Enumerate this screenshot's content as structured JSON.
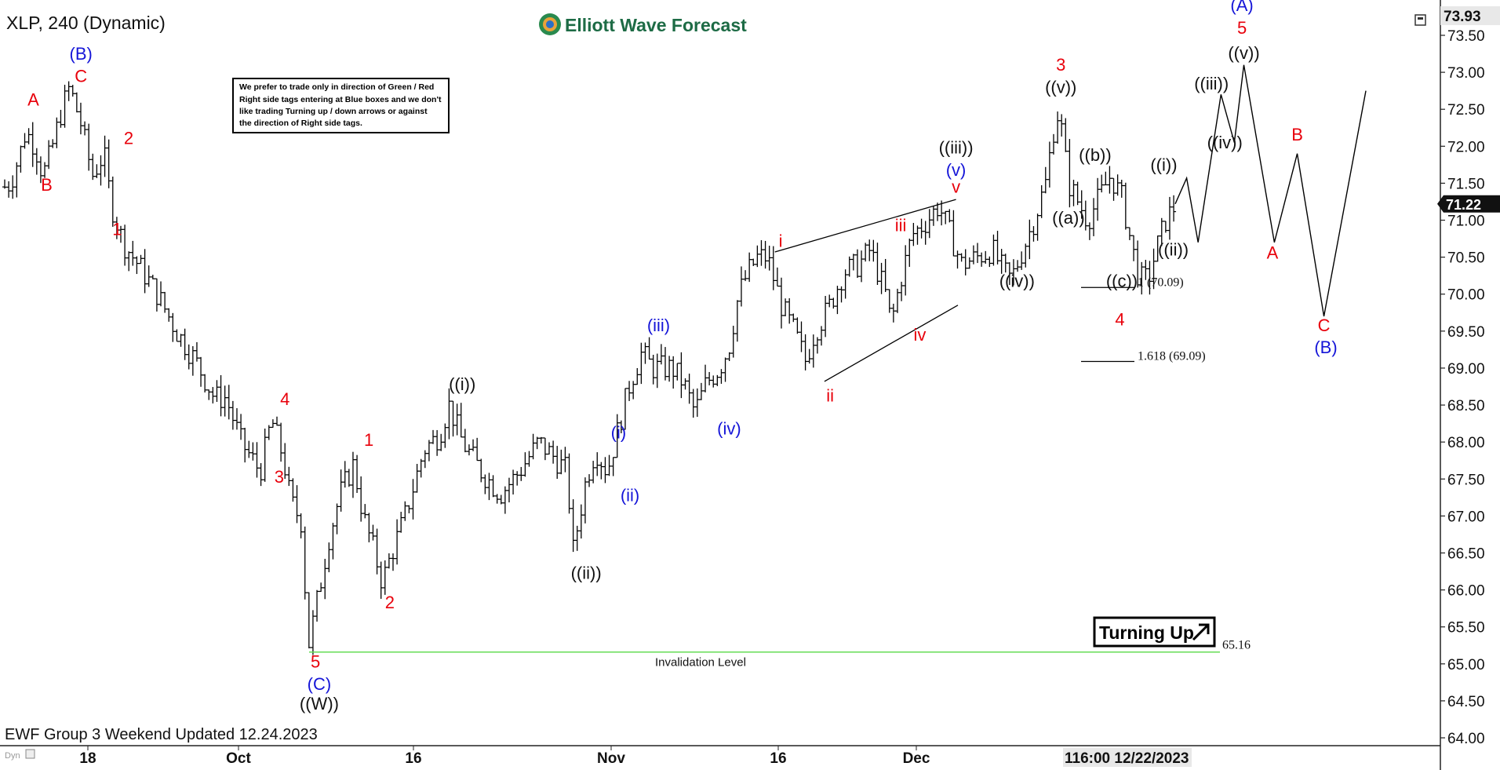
{
  "header": {
    "symbol_title": "XLP, 240 (Dynamic)",
    "brand": "Elliott Wave Forecast"
  },
  "note": {
    "lines": [
      "We prefer to trade only in direction of Green / Red",
      "Right side tags entering at Blue boxes and we don't",
      "like trading Turning up / down arrows or against",
      "the direction of Right side tags."
    ]
  },
  "footer": {
    "update_text": "EWF Group 3 Weekend Updated 12.24.2023",
    "corner_text": "Dyn"
  },
  "badge": {
    "label": "Turning Up",
    "icon": "arrow-up-right-icon"
  },
  "invalidation": {
    "label": "Invalidation Level",
    "value_text": "65.16",
    "value": 65.16,
    "color": "#66dd55"
  },
  "fib_levels": [
    {
      "label": "1 (70.09)",
      "value": 70.09
    },
    {
      "label": "1.618 (69.09)",
      "value": 69.09
    }
  ],
  "current_price": {
    "label": "71.22",
    "value": 71.22
  },
  "max_price_label": "73.93",
  "colors": {
    "red": "#e8000b",
    "blue": "#1515d8",
    "black": "#111111",
    "green_line": "#66dd55",
    "brand_green": "#1d6b45"
  },
  "chart_data": {
    "type": "ohlc",
    "title": "XLP, 240 (Dynamic)",
    "ylim": [
      64.0,
      73.93
    ],
    "y_ticks": [
      "73.50",
      "73.00",
      "72.50",
      "72.00",
      "71.50",
      "71.00",
      "70.50",
      "70.00",
      "69.50",
      "69.00",
      "68.50",
      "68.00",
      "67.50",
      "67.00",
      "66.50",
      "66.00",
      "65.50",
      "65.00",
      "64.50",
      "64.00"
    ],
    "x_ticks": [
      "18",
      "Oct",
      "16",
      "Nov",
      "16",
      "Dec"
    ],
    "x_end_label": "116:00 12/22/2023",
    "path_points": [
      [
        0,
        71.45
      ],
      [
        0.3,
        71.5
      ],
      [
        0.8,
        71.9
      ],
      [
        1.1,
        72.2
      ],
      [
        1.6,
        72.0
      ],
      [
        2.0,
        71.6
      ],
      [
        2.4,
        71.9
      ],
      [
        3.0,
        72.5
      ],
      [
        3.4,
        72.8
      ],
      [
        4.0,
        72.3
      ],
      [
        4.6,
        71.6
      ],
      [
        5.2,
        71.9
      ],
      [
        5.6,
        71.2
      ],
      [
        6.2,
        70.7
      ],
      [
        7.0,
        70.4
      ],
      [
        8.0,
        70.0
      ],
      [
        9.0,
        69.5
      ],
      [
        10.0,
        69.1
      ],
      [
        11.0,
        68.6
      ],
      [
        11.6,
        68.6
      ],
      [
        12.4,
        68.0
      ],
      [
        13.4,
        67.6
      ],
      [
        14.0,
        68.3
      ],
      [
        14.6,
        67.8
      ],
      [
        15.0,
        67.2
      ],
      [
        15.6,
        66.9
      ],
      [
        15.9,
        65.2
      ],
      [
        16.5,
        66.0
      ],
      [
        17.0,
        66.7
      ],
      [
        17.6,
        67.3
      ],
      [
        18.3,
        67.7
      ],
      [
        18.8,
        67.0
      ],
      [
        19.4,
        66.5
      ],
      [
        19.8,
        66.1
      ],
      [
        20.3,
        66.5
      ],
      [
        21.0,
        67.0
      ],
      [
        22.0,
        67.9
      ],
      [
        22.8,
        68.1
      ],
      [
        23.3,
        68.5
      ],
      [
        24.0,
        68.0
      ],
      [
        25.0,
        67.6
      ],
      [
        26.0,
        67.3
      ],
      [
        27.0,
        67.6
      ],
      [
        28.0,
        68.0
      ],
      [
        28.8,
        67.8
      ],
      [
        29.5,
        67.6
      ],
      [
        29.8,
        66.5
      ],
      [
        30.5,
        67.5
      ],
      [
        31.0,
        67.9
      ],
      [
        31.6,
        67.6
      ],
      [
        32.2,
        68.2
      ],
      [
        32.8,
        68.8
      ],
      [
        33.4,
        69.2
      ],
      [
        34.0,
        69.0
      ],
      [
        35.0,
        69.0
      ],
      [
        35.6,
        68.8
      ],
      [
        36.2,
        68.4
      ],
      [
        36.8,
        68.8
      ],
      [
        37.5,
        69.0
      ],
      [
        38.0,
        69.3
      ],
      [
        38.5,
        70.0
      ],
      [
        39.0,
        70.3
      ],
      [
        39.5,
        70.5
      ],
      [
        40.0,
        70.5
      ],
      [
        40.8,
        69.8
      ],
      [
        41.4,
        69.5
      ],
      [
        42.0,
        69.1
      ],
      [
        42.5,
        69.5
      ],
      [
        43.2,
        69.8
      ],
      [
        44.0,
        70.3
      ],
      [
        44.8,
        70.4
      ],
      [
        45.4,
        70.6
      ],
      [
        45.8,
        70.3
      ],
      [
        46.2,
        70.0
      ],
      [
        46.5,
        69.6
      ],
      [
        47.0,
        70.2
      ],
      [
        47.6,
        70.8
      ],
      [
        48.4,
        71.0
      ],
      [
        49.0,
        71.2
      ],
      [
        49.6,
        70.8
      ],
      [
        50.2,
        70.4
      ],
      [
        51.0,
        70.5
      ],
      [
        51.8,
        70.6
      ],
      [
        52.4,
        70.3
      ],
      [
        52.8,
        70.2
      ],
      [
        53.4,
        70.6
      ],
      [
        54.0,
        71.0
      ],
      [
        54.6,
        71.5
      ],
      [
        55.0,
        72.2
      ],
      [
        55.3,
        72.5
      ],
      [
        55.8,
        71.5
      ],
      [
        56.4,
        71.2
      ],
      [
        56.8,
        71.0
      ],
      [
        57.4,
        71.3
      ],
      [
        58.0,
        71.6
      ],
      [
        58.6,
        71.3
      ],
      [
        59.0,
        70.8
      ],
      [
        59.5,
        70.2
      ],
      [
        60.0,
        70.2
      ],
      [
        60.4,
        70.6
      ],
      [
        60.9,
        71.0
      ],
      [
        61.4,
        71.2
      ]
    ],
    "projection": [
      [
        61.4,
        71.22
      ],
      [
        62.0,
        71.57
      ],
      [
        62.6,
        70.7
      ],
      [
        63.8,
        72.7
      ],
      [
        64.5,
        72.05
      ],
      [
        65.0,
        73.1
      ],
      [
        66.6,
        70.7
      ],
      [
        67.8,
        71.9
      ],
      [
        69.2,
        69.7
      ],
      [
        71.4,
        72.75
      ]
    ],
    "wave_labels": [
      {
        "text": "A",
        "x": 1.5,
        "y": 72.55,
        "color": "red"
      },
      {
        "text": "B",
        "x": 2.2,
        "y": 71.4,
        "color": "red"
      },
      {
        "text": "(B)",
        "x": 4.0,
        "y": 73.17,
        "color": "blue"
      },
      {
        "text": "C",
        "x": 4.0,
        "y": 72.87,
        "color": "red"
      },
      {
        "text": "2",
        "x": 6.5,
        "y": 72.03,
        "color": "red"
      },
      {
        "text": "1",
        "x": 5.9,
        "y": 70.8,
        "color": "red"
      },
      {
        "text": "4",
        "x": 14.7,
        "y": 68.5,
        "color": "red"
      },
      {
        "text": "3",
        "x": 14.4,
        "y": 67.45,
        "color": "red"
      },
      {
        "text": "1",
        "x": 19.1,
        "y": 67.95,
        "color": "red"
      },
      {
        "text": "2",
        "x": 20.2,
        "y": 65.75,
        "color": "red"
      },
      {
        "text": "5",
        "x": 16.3,
        "y": 64.95,
        "color": "red"
      },
      {
        "text": "(C)",
        "x": 16.5,
        "y": 64.65,
        "color": "blue"
      },
      {
        "text": "((W))",
        "x": 16.5,
        "y": 64.38,
        "color": "black"
      },
      {
        "text": "((i))",
        "x": 24.0,
        "y": 68.7,
        "color": "black"
      },
      {
        "text": "((ii))",
        "x": 30.5,
        "y": 66.15,
        "color": "black"
      },
      {
        "text": "(i)",
        "x": 32.2,
        "y": 68.05,
        "color": "blue"
      },
      {
        "text": "(ii)",
        "x": 32.8,
        "y": 67.2,
        "color": "blue"
      },
      {
        "text": "(iii)",
        "x": 34.3,
        "y": 69.5,
        "color": "blue"
      },
      {
        "text": "(iv)",
        "x": 38.0,
        "y": 68.1,
        "color": "blue"
      },
      {
        "text": "i",
        "x": 40.7,
        "y": 70.64,
        "color": "red"
      },
      {
        "text": "ii",
        "x": 43.3,
        "y": 68.55,
        "color": "red"
      },
      {
        "text": "iii",
        "x": 47.0,
        "y": 70.85,
        "color": "red"
      },
      {
        "text": "iv",
        "x": 48.0,
        "y": 69.37,
        "color": "red"
      },
      {
        "text": "((iii))",
        "x": 49.9,
        "y": 71.9,
        "color": "black"
      },
      {
        "text": "(v)",
        "x": 49.9,
        "y": 71.6,
        "color": "blue"
      },
      {
        "text": "v",
        "x": 49.9,
        "y": 71.37,
        "color": "red"
      },
      {
        "text": "3",
        "x": 55.4,
        "y": 73.02,
        "color": "red"
      },
      {
        "text": "((v))",
        "x": 55.4,
        "y": 72.72,
        "color": "black"
      },
      {
        "text": "((iv))",
        "x": 53.1,
        "y": 70.1,
        "color": "black"
      },
      {
        "text": "((a))",
        "x": 55.8,
        "y": 70.95,
        "color": "black"
      },
      {
        "text": "((b))",
        "x": 57.2,
        "y": 71.8,
        "color": "black"
      },
      {
        "text": "((c))",
        "x": 58.6,
        "y": 70.1,
        "color": "black"
      },
      {
        "text": "4",
        "x": 58.5,
        "y": 69.58,
        "color": "red"
      },
      {
        "text": "((i))",
        "x": 60.8,
        "y": 71.67,
        "color": "black"
      },
      {
        "text": "((ii))",
        "x": 61.3,
        "y": 70.52,
        "color": "black"
      },
      {
        "text": "((iii))",
        "x": 63.3,
        "y": 72.77,
        "color": "black"
      },
      {
        "text": "((iv))",
        "x": 64.0,
        "y": 71.97,
        "color": "black"
      },
      {
        "text": "((v))",
        "x": 65.0,
        "y": 73.18,
        "color": "black"
      },
      {
        "text": "5",
        "x": 64.9,
        "y": 73.52,
        "color": "red"
      },
      {
        "text": "(A)",
        "x": 64.9,
        "y": 73.83,
        "color": "blue"
      },
      {
        "text": "A",
        "x": 66.5,
        "y": 70.48,
        "color": "red"
      },
      {
        "text": "B",
        "x": 67.8,
        "y": 72.08,
        "color": "red"
      },
      {
        "text": "C",
        "x": 69.2,
        "y": 69.5,
        "color": "red"
      },
      {
        "text": "(B)",
        "x": 69.3,
        "y": 69.2,
        "color": "blue"
      }
    ]
  }
}
